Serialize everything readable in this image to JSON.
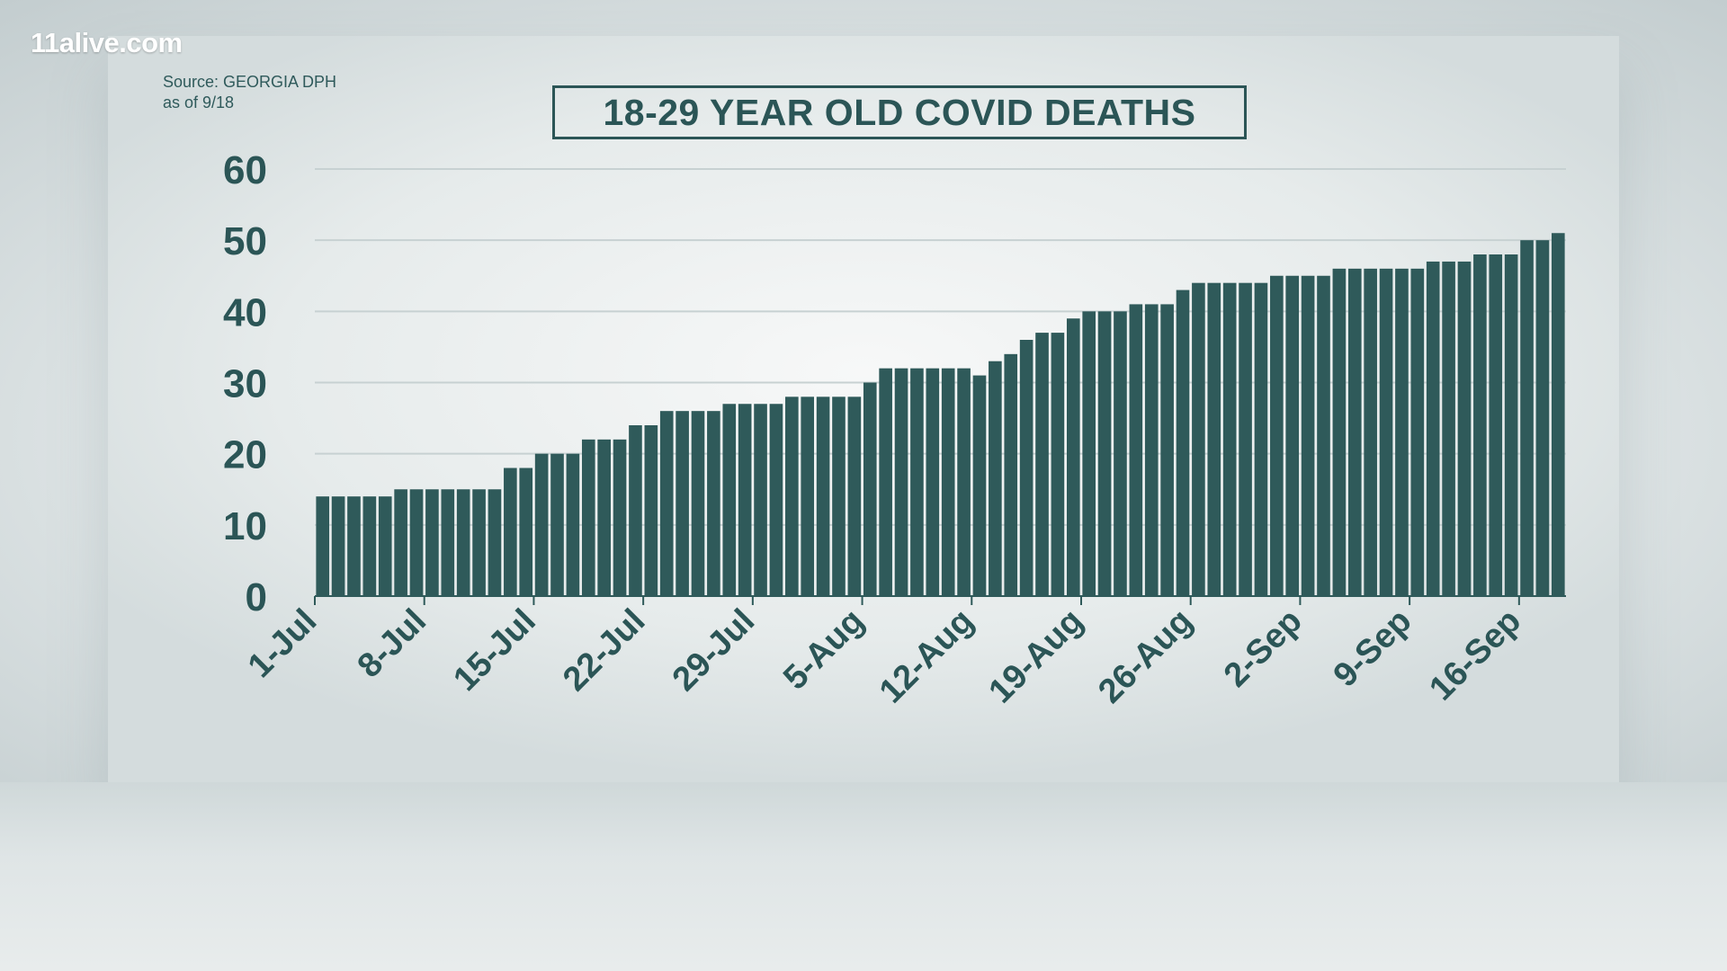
{
  "brand": {
    "logo_text": "11alive.com"
  },
  "source": {
    "line1": "Source: GEORGIA DPH",
    "line2": "as of 9/18"
  },
  "colors": {
    "bar": "#2f5a5a",
    "text": "#2b5556",
    "grid": "#c7d1d2"
  },
  "chart_data": {
    "type": "bar",
    "title": "18-29 YEAR OLD COVID DEATHS",
    "xlabel": "",
    "ylabel": "",
    "ylim": [
      0,
      60
    ],
    "yticks": [
      0,
      10,
      20,
      30,
      40,
      50,
      60
    ],
    "grid": true,
    "legend": "none",
    "x_tick_labels": [
      "1-Jul",
      "8-Jul",
      "15-Jul",
      "22-Jul",
      "29-Jul",
      "5-Aug",
      "12-Aug",
      "19-Aug",
      "26-Aug",
      "2-Sep",
      "9-Sep",
      "16-Sep"
    ],
    "categories": [
      "1-Jul",
      "2-Jul",
      "3-Jul",
      "4-Jul",
      "5-Jul",
      "6-Jul",
      "7-Jul",
      "8-Jul",
      "9-Jul",
      "10-Jul",
      "11-Jul",
      "12-Jul",
      "13-Jul",
      "14-Jul",
      "15-Jul",
      "16-Jul",
      "17-Jul",
      "18-Jul",
      "19-Jul",
      "20-Jul",
      "21-Jul",
      "22-Jul",
      "23-Jul",
      "24-Jul",
      "25-Jul",
      "26-Jul",
      "27-Jul",
      "28-Jul",
      "29-Jul",
      "30-Jul",
      "31-Jul",
      "1-Aug",
      "2-Aug",
      "3-Aug",
      "4-Aug",
      "5-Aug",
      "6-Aug",
      "7-Aug",
      "8-Aug",
      "9-Aug",
      "10-Aug",
      "11-Aug",
      "12-Aug",
      "13-Aug",
      "14-Aug",
      "15-Aug",
      "16-Aug",
      "17-Aug",
      "18-Aug",
      "19-Aug",
      "20-Aug",
      "21-Aug",
      "22-Aug",
      "23-Aug",
      "24-Aug",
      "25-Aug",
      "26-Aug",
      "27-Aug",
      "28-Aug",
      "29-Aug",
      "30-Aug",
      "31-Aug",
      "1-Sep",
      "2-Sep",
      "3-Sep",
      "4-Sep",
      "5-Sep",
      "6-Sep",
      "7-Sep",
      "8-Sep",
      "9-Sep",
      "10-Sep",
      "11-Sep",
      "12-Sep",
      "13-Sep",
      "14-Sep",
      "15-Sep",
      "16-Sep",
      "17-Sep",
      "18-Sep"
    ],
    "values": [
      14,
      14,
      14,
      14,
      14,
      15,
      15,
      15,
      15,
      15,
      15,
      15,
      18,
      18,
      20,
      20,
      20,
      22,
      22,
      22,
      24,
      24,
      26,
      26,
      26,
      26,
      27,
      27,
      27,
      27,
      28,
      28,
      28,
      28,
      28,
      30,
      32,
      32,
      32,
      32,
      32,
      32,
      31,
      33,
      34,
      36,
      37,
      37,
      39,
      40,
      40,
      40,
      41,
      41,
      41,
      43,
      44,
      44,
      44,
      44,
      44,
      45,
      45,
      45,
      45,
      46,
      46,
      46,
      46,
      46,
      46,
      47,
      47,
      47,
      48,
      48,
      48,
      50,
      50,
      51
    ]
  }
}
